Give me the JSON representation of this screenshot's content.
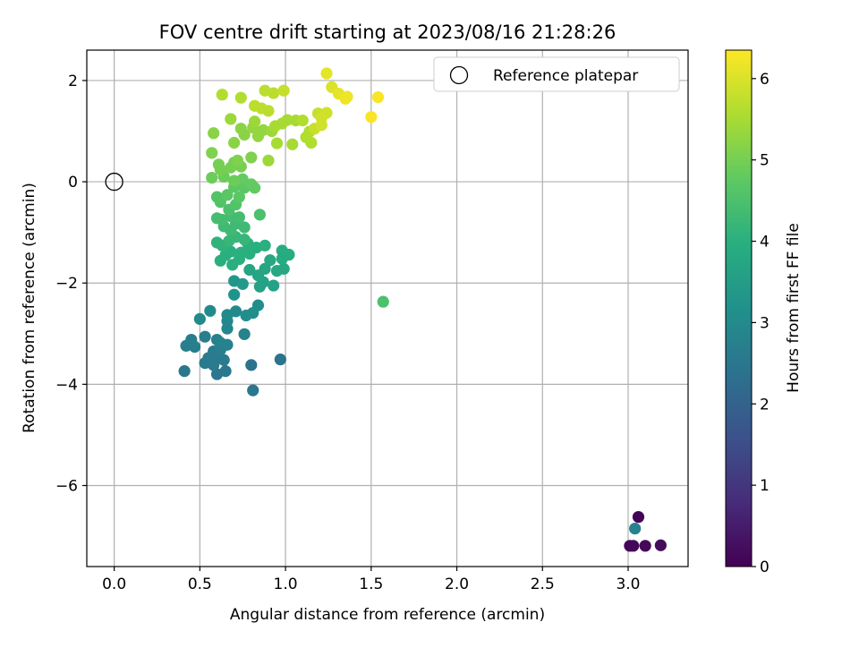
{
  "chart_data": {
    "type": "scatter",
    "title": "FOV centre drift starting at 2023/08/16 21:28:26",
    "xlabel": "Angular distance from reference (arcmin)",
    "ylabel": "Rotation from reference (arcmin)",
    "xlim": [
      -0.16,
      3.35
    ],
    "ylim": [
      -7.6,
      2.6
    ],
    "x_ticks": [
      0.0,
      0.5,
      1.0,
      1.5,
      2.0,
      2.5,
      3.0
    ],
    "x_tick_labels": [
      "0.0",
      "0.5",
      "1.0",
      "1.5",
      "2.0",
      "2.5",
      "3.0"
    ],
    "y_ticks": [
      2,
      0,
      -2,
      -4,
      -6
    ],
    "y_tick_labels": [
      "2",
      "0",
      "−2",
      "−4",
      "−6"
    ],
    "grid": true,
    "legend": {
      "placement": "top-right",
      "entries": [
        "Reference platepar"
      ]
    },
    "reference_point": {
      "x": 0.0,
      "y": 0.0,
      "label": "Reference platepar"
    },
    "colorbar": {
      "label": "Hours from first FF file",
      "colormap": "viridis",
      "range": [
        0,
        6.35
      ],
      "ticks": [
        0,
        1,
        2,
        3,
        4,
        5,
        6
      ],
      "tick_labels": [
        "0",
        "1",
        "2",
        "3",
        "4",
        "5",
        "6"
      ]
    },
    "series": [
      {
        "points": [
          {
            "x": 3.06,
            "y": -6.62,
            "c": 0.05
          },
          {
            "x": 3.01,
            "y": -7.19,
            "c": 0.1
          },
          {
            "x": 3.03,
            "y": -7.19,
            "c": 0.12
          },
          {
            "x": 3.1,
            "y": -7.19,
            "c": 0.15
          },
          {
            "x": 3.19,
            "y": -7.18,
            "c": 0.2
          },
          {
            "x": 3.04,
            "y": -6.85,
            "c": 2.8
          },
          {
            "x": 0.81,
            "y": -4.12,
            "c": 2.5
          },
          {
            "x": 0.97,
            "y": -3.51,
            "c": 2.4
          },
          {
            "x": 0.8,
            "y": -3.62,
            "c": 2.4
          },
          {
            "x": 0.41,
            "y": -3.74,
            "c": 2.5
          },
          {
            "x": 0.6,
            "y": -3.8,
            "c": 2.5
          },
          {
            "x": 0.65,
            "y": -3.74,
            "c": 2.5
          },
          {
            "x": 0.58,
            "y": -3.62,
            "c": 2.6
          },
          {
            "x": 0.53,
            "y": -3.58,
            "c": 2.6
          },
          {
            "x": 0.55,
            "y": -3.48,
            "c": 2.6
          },
          {
            "x": 0.6,
            "y": -3.45,
            "c": 2.6
          },
          {
            "x": 0.64,
            "y": -3.52,
            "c": 2.6
          },
          {
            "x": 0.58,
            "y": -3.35,
            "c": 2.6
          },
          {
            "x": 0.62,
            "y": -3.32,
            "c": 2.7
          },
          {
            "x": 0.47,
            "y": -3.26,
            "c": 2.7
          },
          {
            "x": 0.42,
            "y": -3.24,
            "c": 2.7
          },
          {
            "x": 0.45,
            "y": -3.12,
            "c": 2.7
          },
          {
            "x": 0.53,
            "y": -3.06,
            "c": 2.7
          },
          {
            "x": 0.6,
            "y": -3.12,
            "c": 2.7
          },
          {
            "x": 0.62,
            "y": -3.18,
            "c": 2.8
          },
          {
            "x": 0.66,
            "y": -3.22,
            "c": 2.8
          },
          {
            "x": 0.76,
            "y": -3.01,
            "c": 2.8
          },
          {
            "x": 0.66,
            "y": -2.9,
            "c": 2.9
          },
          {
            "x": 0.66,
            "y": -2.75,
            "c": 2.9
          },
          {
            "x": 0.5,
            "y": -2.71,
            "c": 3.0
          },
          {
            "x": 0.56,
            "y": -2.55,
            "c": 3.0
          },
          {
            "x": 0.66,
            "y": -2.63,
            "c": 3.0
          },
          {
            "x": 0.71,
            "y": -2.56,
            "c": 3.0
          },
          {
            "x": 0.77,
            "y": -2.64,
            "c": 3.1
          },
          {
            "x": 0.81,
            "y": -2.59,
            "c": 3.1
          },
          {
            "x": 0.84,
            "y": -2.44,
            "c": 3.1
          },
          {
            "x": 0.7,
            "y": -2.23,
            "c": 3.2
          },
          {
            "x": 0.7,
            "y": -1.96,
            "c": 3.3
          },
          {
            "x": 0.75,
            "y": -2.02,
            "c": 3.4
          },
          {
            "x": 0.85,
            "y": -2.07,
            "c": 3.6
          },
          {
            "x": 0.87,
            "y": -1.98,
            "c": 3.6
          },
          {
            "x": 0.93,
            "y": -2.05,
            "c": 3.6
          },
          {
            "x": 0.84,
            "y": -1.85,
            "c": 3.7
          },
          {
            "x": 0.79,
            "y": -1.74,
            "c": 3.7
          },
          {
            "x": 0.88,
            "y": -1.72,
            "c": 3.7
          },
          {
            "x": 0.91,
            "y": -1.55,
            "c": 3.8
          },
          {
            "x": 0.95,
            "y": -1.76,
            "c": 3.8
          },
          {
            "x": 0.99,
            "y": -1.72,
            "c": 3.8
          },
          {
            "x": 0.98,
            "y": -1.52,
            "c": 3.9
          },
          {
            "x": 1.02,
            "y": -1.44,
            "c": 3.9
          },
          {
            "x": 0.98,
            "y": -1.36,
            "c": 3.9
          },
          {
            "x": 0.62,
            "y": -1.56,
            "c": 4.0
          },
          {
            "x": 0.69,
            "y": -1.64,
            "c": 4.0
          },
          {
            "x": 0.73,
            "y": -1.53,
            "c": 4.0
          },
          {
            "x": 0.65,
            "y": -1.45,
            "c": 4.0
          },
          {
            "x": 0.68,
            "y": -1.38,
            "c": 4.0
          },
          {
            "x": 0.74,
            "y": -1.4,
            "c": 4.0
          },
          {
            "x": 0.79,
            "y": -1.42,
            "c": 4.0
          },
          {
            "x": 0.83,
            "y": -1.3,
            "c": 4.0
          },
          {
            "x": 0.88,
            "y": -1.26,
            "c": 4.0
          },
          {
            "x": 0.78,
            "y": -1.22,
            "c": 4.0
          },
          {
            "x": 0.6,
            "y": -1.2,
            "c": 4.1
          },
          {
            "x": 0.63,
            "y": -1.26,
            "c": 4.1
          },
          {
            "x": 0.67,
            "y": -1.17,
            "c": 4.2
          },
          {
            "x": 0.71,
            "y": -1.09,
            "c": 4.2
          },
          {
            "x": 0.76,
            "y": -1.14,
            "c": 4.2
          },
          {
            "x": 0.68,
            "y": -0.96,
            "c": 4.3
          },
          {
            "x": 0.64,
            "y": -0.88,
            "c": 4.3
          },
          {
            "x": 0.71,
            "y": -0.83,
            "c": 4.3
          },
          {
            "x": 0.76,
            "y": -0.9,
            "c": 4.3
          },
          {
            "x": 0.6,
            "y": -0.72,
            "c": 4.4
          },
          {
            "x": 0.63,
            "y": -0.75,
            "c": 4.4
          },
          {
            "x": 0.68,
            "y": -0.68,
            "c": 4.4
          },
          {
            "x": 0.73,
            "y": -0.7,
            "c": 4.4
          },
          {
            "x": 0.85,
            "y": -0.65,
            "c": 4.5
          },
          {
            "x": 1.57,
            "y": -2.37,
            "c": 4.5
          },
          {
            "x": 0.67,
            "y": -0.55,
            "c": 4.5
          },
          {
            "x": 0.71,
            "y": -0.45,
            "c": 4.6
          },
          {
            "x": 0.62,
            "y": -0.4,
            "c": 4.6
          },
          {
            "x": 0.6,
            "y": -0.3,
            "c": 4.6
          },
          {
            "x": 0.66,
            "y": -0.26,
            "c": 4.7
          },
          {
            "x": 0.73,
            "y": -0.3,
            "c": 4.7
          },
          {
            "x": 0.76,
            "y": -0.12,
            "c": 4.7
          },
          {
            "x": 0.7,
            "y": -0.1,
            "c": 4.7
          },
          {
            "x": 0.8,
            "y": -0.05,
            "c": 4.8
          },
          {
            "x": 0.82,
            "y": -0.12,
            "c": 4.8
          },
          {
            "x": 0.75,
            "y": 0.05,
            "c": 4.8
          },
          {
            "x": 0.7,
            "y": 0.02,
            "c": 4.9
          },
          {
            "x": 0.64,
            "y": 0.1,
            "c": 4.9
          },
          {
            "x": 0.57,
            "y": 0.08,
            "c": 4.9
          },
          {
            "x": 0.62,
            "y": 0.24,
            "c": 5.0
          },
          {
            "x": 0.68,
            "y": 0.28,
            "c": 5.0
          },
          {
            "x": 0.74,
            "y": 0.3,
            "c": 5.0
          },
          {
            "x": 0.61,
            "y": 0.34,
            "c": 5.0
          },
          {
            "x": 0.7,
            "y": 0.38,
            "c": 5.0
          },
          {
            "x": 0.72,
            "y": 0.42,
            "c": 5.1
          },
          {
            "x": 0.57,
            "y": 0.57,
            "c": 5.1
          },
          {
            "x": 0.8,
            "y": 0.48,
            "c": 5.1
          },
          {
            "x": 0.58,
            "y": 0.96,
            "c": 5.2
          },
          {
            "x": 0.7,
            "y": 0.77,
            "c": 5.2
          },
          {
            "x": 0.76,
            "y": 0.93,
            "c": 5.2
          },
          {
            "x": 0.74,
            "y": 1.05,
            "c": 5.2
          },
          {
            "x": 0.84,
            "y": 0.9,
            "c": 5.3
          },
          {
            "x": 0.81,
            "y": 1.07,
            "c": 5.3
          },
          {
            "x": 0.87,
            "y": 1.02,
            "c": 5.3
          },
          {
            "x": 0.92,
            "y": 1.0,
            "c": 5.4
          },
          {
            "x": 0.82,
            "y": 1.19,
            "c": 5.4
          },
          {
            "x": 0.68,
            "y": 1.24,
            "c": 5.4
          },
          {
            "x": 0.9,
            "y": 0.42,
            "c": 5.4
          },
          {
            "x": 0.95,
            "y": 0.76,
            "c": 5.5
          },
          {
            "x": 0.94,
            "y": 1.1,
            "c": 5.5
          },
          {
            "x": 0.98,
            "y": 1.15,
            "c": 5.5
          },
          {
            "x": 1.04,
            "y": 0.74,
            "c": 5.5
          },
          {
            "x": 1.01,
            "y": 1.22,
            "c": 5.5
          },
          {
            "x": 1.06,
            "y": 1.21,
            "c": 5.5
          },
          {
            "x": 1.1,
            "y": 1.21,
            "c": 5.6
          },
          {
            "x": 1.14,
            "y": 0.99,
            "c": 5.6
          },
          {
            "x": 1.12,
            "y": 0.88,
            "c": 5.6
          },
          {
            "x": 1.15,
            "y": 0.77,
            "c": 5.6
          },
          {
            "x": 0.63,
            "y": 1.72,
            "c": 5.6
          },
          {
            "x": 0.74,
            "y": 1.66,
            "c": 5.6
          },
          {
            "x": 0.82,
            "y": 1.5,
            "c": 5.7
          },
          {
            "x": 0.86,
            "y": 1.45,
            "c": 5.7
          },
          {
            "x": 0.9,
            "y": 1.4,
            "c": 5.7
          },
          {
            "x": 0.88,
            "y": 1.8,
            "c": 5.7
          },
          {
            "x": 0.93,
            "y": 1.75,
            "c": 5.7
          },
          {
            "x": 0.99,
            "y": 1.8,
            "c": 5.8
          },
          {
            "x": 1.17,
            "y": 1.05,
            "c": 5.8
          },
          {
            "x": 1.19,
            "y": 1.35,
            "c": 5.8
          },
          {
            "x": 1.21,
            "y": 1.26,
            "c": 5.9
          },
          {
            "x": 1.24,
            "y": 1.36,
            "c": 5.9
          },
          {
            "x": 1.21,
            "y": 1.12,
            "c": 5.9
          },
          {
            "x": 1.27,
            "y": 1.87,
            "c": 6.0
          },
          {
            "x": 1.24,
            "y": 2.14,
            "c": 6.1
          },
          {
            "x": 1.31,
            "y": 1.74,
            "c": 6.1
          },
          {
            "x": 1.35,
            "y": 1.64,
            "c": 6.2
          },
          {
            "x": 1.36,
            "y": 1.68,
            "c": 6.2
          },
          {
            "x": 1.5,
            "y": 1.28,
            "c": 6.3
          },
          {
            "x": 1.54,
            "y": 1.67,
            "c": 6.3
          }
        ]
      }
    ]
  }
}
